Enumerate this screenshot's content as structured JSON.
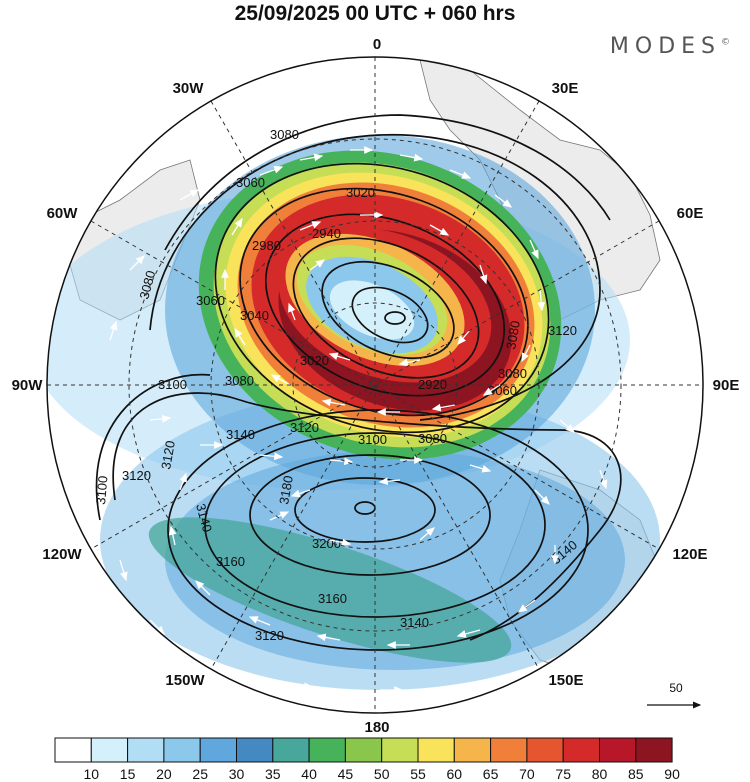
{
  "title": "25/09/2025  00 UTC  + 060 hrs",
  "brand": "MODES",
  "brand_mark": "©",
  "longitude_labels": {
    "top": "0",
    "top_right": "30E",
    "right_upper": "60E",
    "right": "90E",
    "right_lower": "120E",
    "bottom_right": "150E",
    "bottom": "180",
    "bottom_left": "150W",
    "left_lower": "120W",
    "left": "90W",
    "left_upper": "60W",
    "top_left": "30W"
  },
  "contour_labels": [
    "3080",
    "3060",
    "3020",
    "2980",
    "2940",
    "3060",
    "3040",
    "3080",
    "2920",
    "3080",
    "3060",
    "3020",
    "3100",
    "3080",
    "3120",
    "3140",
    "3120",
    "3100",
    "3080",
    "3120",
    "3140",
    "3100",
    "3180",
    "3200",
    "3160",
    "3160",
    "3140",
    "3120",
    "3140",
    "3120",
    "3080"
  ],
  "vector_reference": "50",
  "colorbar": {
    "colors": [
      "#ffffff",
      "#d4f0fb",
      "#b2def5",
      "#8cc7ec",
      "#5fa7dc",
      "#4589c2",
      "#47a79a",
      "#46b35a",
      "#8ac64b",
      "#c6dd56",
      "#f8e35a",
      "#f6b54a",
      "#f07f3a",
      "#e45530",
      "#d42a2a",
      "#b8172a",
      "#8d1421"
    ],
    "labels": [
      "10",
      "15",
      "20",
      "25",
      "30",
      "35",
      "40",
      "45",
      "50",
      "55",
      "60",
      "65",
      "70",
      "75",
      "80",
      "85",
      "90"
    ]
  }
}
